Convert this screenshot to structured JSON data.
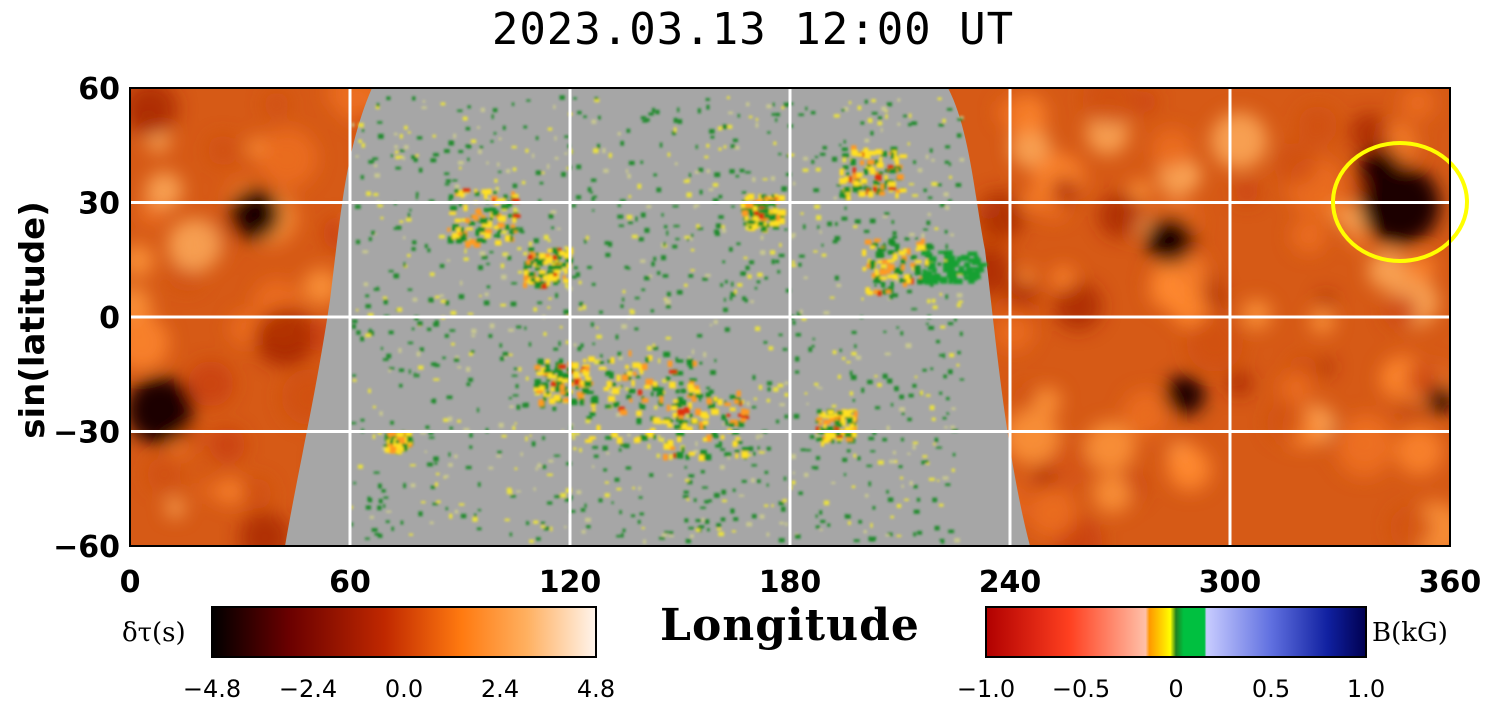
{
  "title": "2023.03.13  12:00 UT",
  "chart_data": {
    "type": "heatmap",
    "title": "2023.03.13  12:00 UT",
    "xlabel": "Longitude",
    "ylabel": "sin(latitude)",
    "xlim": [
      0,
      360
    ],
    "ylim": [
      -60,
      60
    ],
    "x_ticks": [
      "0",
      "60",
      "120",
      "180",
      "240",
      "300",
      "360"
    ],
    "y_ticks": [
      "60",
      "30",
      "0",
      "−30",
      "−60"
    ],
    "grid": true,
    "farside_region_longitudes": [
      [
        0,
        60
      ],
      [
        240,
        360
      ]
    ],
    "nearside_region_longitudes": [
      60,
      240
    ],
    "highlight": {
      "shape": "ellipse",
      "color": "#ffff00",
      "center": {
        "longitude": 348,
        "latitude_tick_units": 27
      },
      "description": "dark farside feature"
    },
    "colorbars": [
      {
        "label": "δτ(s)",
        "ticks": [
          "−4.8",
          "−2.4",
          "0.0",
          "2.4",
          "4.8"
        ],
        "range": [
          -4.8,
          4.8
        ],
        "colors": [
          "#000000",
          "#6a0000",
          "#c02800",
          "#ff7a10",
          "#ffb060",
          "#fff4ec"
        ]
      },
      {
        "label": "B(kG)",
        "ticks": [
          "−1.0",
          "−0.5",
          "0",
          "0.5",
          "1.0"
        ],
        "range": [
          -1.0,
          1.0
        ],
        "colors": [
          "#b00000",
          "#ff4020",
          "#ffc0a8",
          "#ffa000",
          "#ffff00",
          "#00c040",
          "#c0c8ff",
          "#3040c0",
          "#000060"
        ]
      }
    ]
  }
}
